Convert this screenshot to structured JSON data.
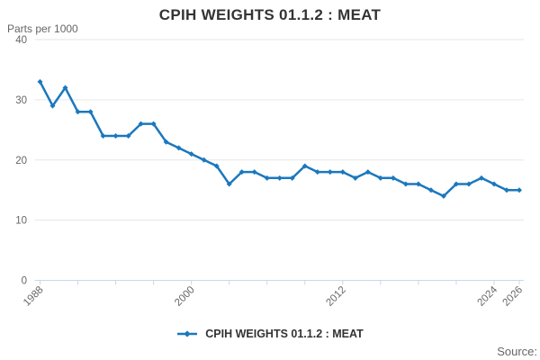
{
  "header": {
    "title": "CPIH WEIGHTS 01.1.2 : MEAT",
    "y_axis_title": "Parts per 1000"
  },
  "legend": {
    "label": "CPIH WEIGHTS 01.1.2 : MEAT"
  },
  "footer": {
    "source_label": "Source:"
  },
  "colors": {
    "series": "#1a78be",
    "grid": "#e6e6e6",
    "axis": "#ccd6eb",
    "tick_label": "#666666",
    "title_text": "#333333"
  },
  "chart_data": {
    "type": "line",
    "title": "CPIH WEIGHTS 01.1.2 : MEAT",
    "ylabel": "Parts per 1000",
    "xlabel": "",
    "x": [
      1988,
      1989,
      1990,
      1991,
      1992,
      1993,
      1994,
      1995,
      1996,
      1997,
      1998,
      1999,
      2000,
      2001,
      2002,
      2003,
      2004,
      2005,
      2006,
      2007,
      2008,
      2009,
      2010,
      2011,
      2012,
      2013,
      2014,
      2015,
      2016,
      2017,
      2018,
      2019,
      2020,
      2021,
      2022,
      2023,
      2024,
      2025,
      2026
    ],
    "series": [
      {
        "name": "CPIH WEIGHTS 01.1.2 : MEAT",
        "values": [
          33,
          29,
          32,
          28,
          28,
          24,
          24,
          24,
          26,
          26,
          23,
          22,
          21,
          20,
          19,
          16,
          18,
          18,
          17,
          17,
          17,
          19,
          18,
          18,
          18,
          17,
          18,
          17,
          17,
          16,
          16,
          15,
          14,
          16,
          16,
          17,
          16,
          15,
          15
        ]
      }
    ],
    "xlim": [
      1988,
      2026
    ],
    "ylim": [
      0,
      40
    ],
    "yticks": [
      0,
      10,
      20,
      30,
      40
    ],
    "xticks": [
      1988,
      1991,
      1994,
      1997,
      2000,
      2003,
      2006,
      2009,
      2012,
      2015,
      2018,
      2021,
      2024,
      2026
    ],
    "labeled_xticks": [
      1988,
      2000,
      2012,
      2024,
      2026
    ],
    "grid": "horizontal",
    "legend_position": "bottom-center",
    "marker": "diamond"
  }
}
